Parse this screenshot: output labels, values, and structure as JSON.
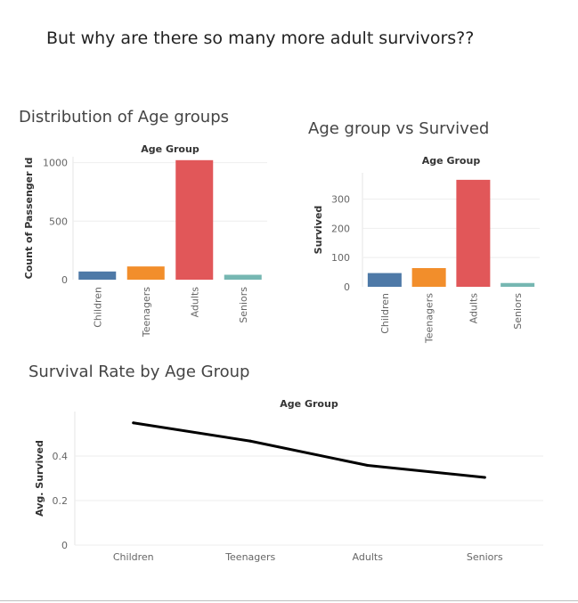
{
  "page": {
    "title": "But why are there so many more adult survivors??"
  },
  "chart_data": [
    {
      "type": "bar",
      "title": "Distribution of Age groups",
      "header": "Age Group",
      "ylabel": "Count of Passenger Id",
      "categories": [
        "Children",
        "Teenagers",
        "Adults",
        "Seniors"
      ],
      "values": [
        70,
        113,
        1021,
        42
      ],
      "colors": [
        "#4e79a7",
        "#f28e2b",
        "#e15759",
        "#76b7b2"
      ],
      "yticks": [
        0,
        500,
        1000
      ],
      "ylim": [
        0,
        1050
      ],
      "grid": true
    },
    {
      "type": "bar",
      "title": "Age group vs Survived",
      "header": "Age Group",
      "ylabel": "Survived",
      "categories": [
        "Children",
        "Teenagers",
        "Adults",
        "Seniors"
      ],
      "values": [
        47,
        64,
        366,
        13
      ],
      "colors": [
        "#4e79a7",
        "#f28e2b",
        "#e15759",
        "#76b7b2"
      ],
      "yticks": [
        0,
        100,
        200,
        300
      ],
      "ylim": [
        0,
        390
      ],
      "grid": true
    },
    {
      "type": "line",
      "title": "Survival Rate by Age Group",
      "header": "Age Group",
      "ylabel": "Avg. Survived",
      "categories": [
        "Children",
        "Teenagers",
        "Adults",
        "Seniors"
      ],
      "values": [
        0.549,
        0.467,
        0.358,
        0.304
      ],
      "color": "#000000",
      "yticks": [
        0.0,
        0.2,
        0.4
      ],
      "ylim": [
        0,
        0.6
      ],
      "grid": true
    }
  ]
}
